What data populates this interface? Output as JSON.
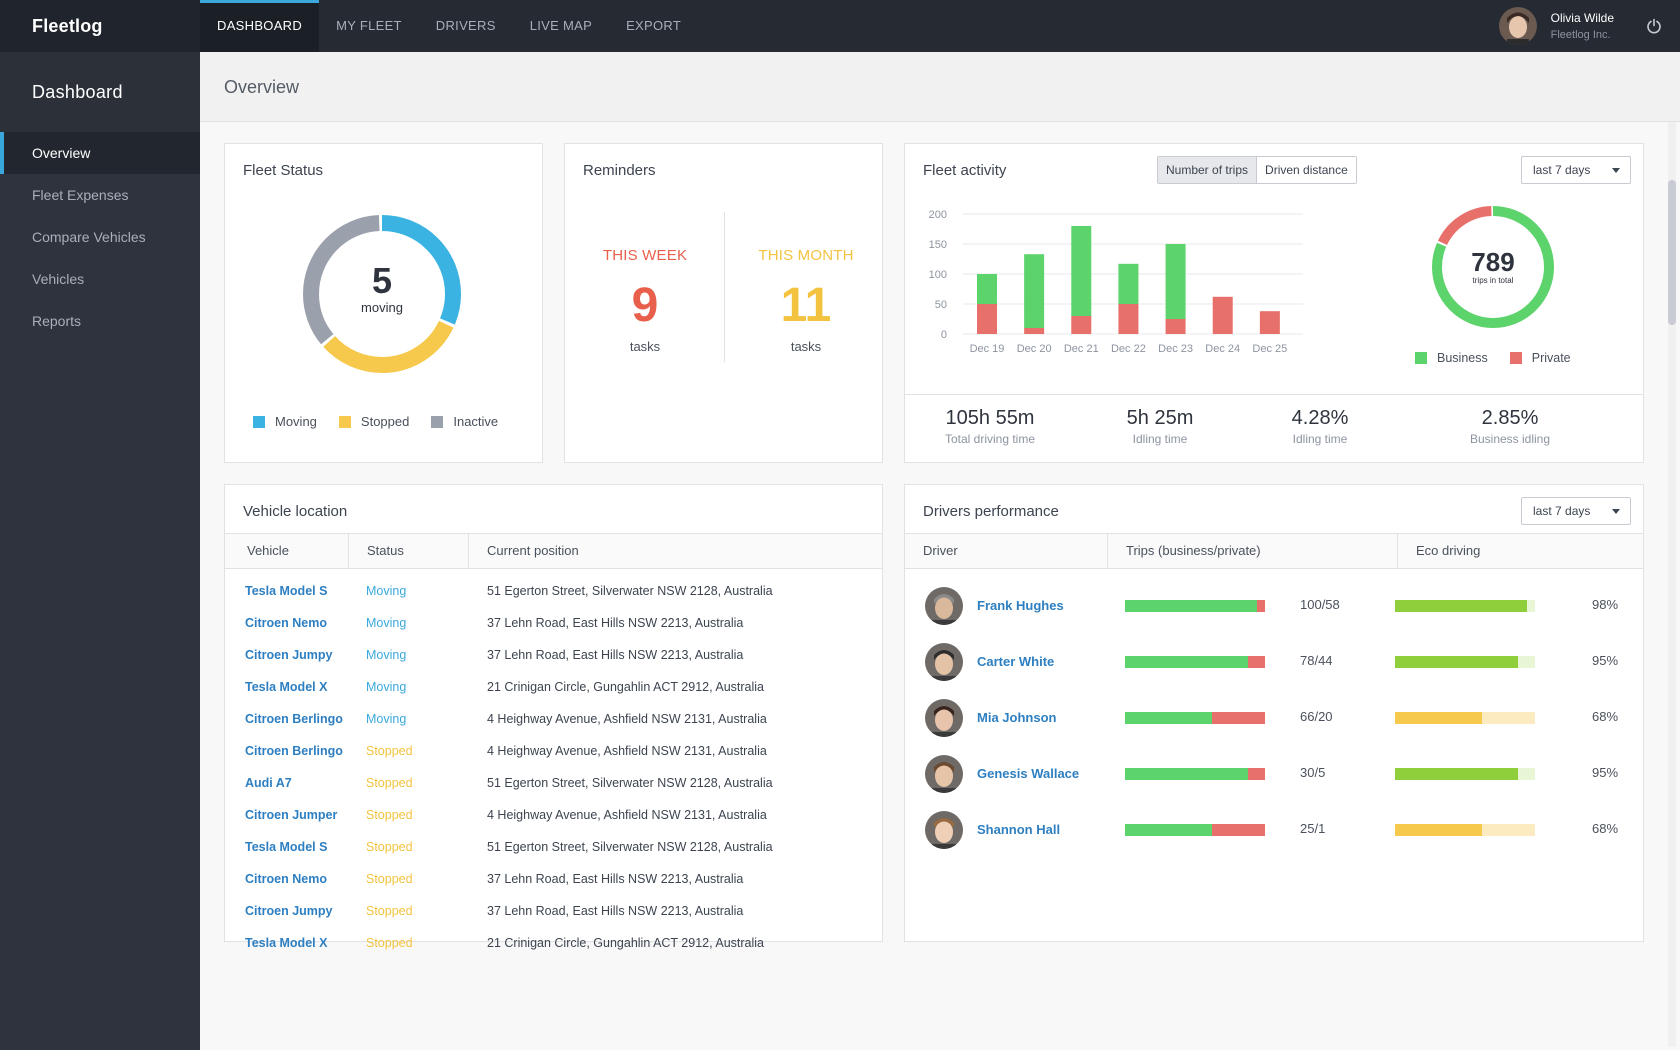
{
  "app": {
    "brand": "Fleetlog"
  },
  "topnav": [
    {
      "label": "DASHBOARD",
      "active": true
    },
    {
      "label": "MY FLEET"
    },
    {
      "label": "DRIVERS"
    },
    {
      "label": "LIVE MAP"
    },
    {
      "label": "EXPORT"
    }
  ],
  "user": {
    "name": "Olivia Wilde",
    "company": "Fleetlog Inc."
  },
  "sidebar": {
    "title": "Dashboard",
    "items": [
      {
        "label": "Overview",
        "active": true
      },
      {
        "label": "Fleet Expenses"
      },
      {
        "label": "Compare Vehicles"
      },
      {
        "label": "Vehicles"
      },
      {
        "label": "Reports"
      }
    ]
  },
  "page": {
    "title": "Overview"
  },
  "fleet_status": {
    "title": "Fleet Status",
    "center_value": "5",
    "center_label": "moving",
    "segments": [
      {
        "label": "Moving",
        "fraction": 0.32,
        "color": "#3ab3e3"
      },
      {
        "label": "Stopped",
        "fraction": 0.32,
        "color": "#f6c94c"
      },
      {
        "label": "Inactive",
        "fraction": 0.36,
        "color": "#9aa1ac"
      }
    ]
  },
  "reminders": {
    "title": "Reminders",
    "week": {
      "label": "THIS WEEK",
      "value": "9",
      "unit": "tasks",
      "color": "#e8604c"
    },
    "month": {
      "label": "THIS MONTH",
      "value": "11",
      "unit": "tasks",
      "color": "#f3c340"
    }
  },
  "fleet_activity": {
    "title": "Fleet activity",
    "toggle": [
      "Number of trips",
      "Driven distance"
    ],
    "range": "last 7 days",
    "total_value": "789",
    "total_label": "trips in total",
    "legend": [
      {
        "label": "Business",
        "color": "#5cd36b"
      },
      {
        "label": "Private",
        "color": "#e8706a"
      }
    ],
    "stats": [
      {
        "value": "105h 55m",
        "label": "Total driving time"
      },
      {
        "value": "5h 25m",
        "label": "Idling time"
      },
      {
        "value": "4.28%",
        "label": "Idling time"
      },
      {
        "value": "2.85%",
        "label": "Business idling"
      }
    ]
  },
  "chart_data": [
    {
      "type": "bar",
      "stacked": true,
      "categories": [
        "Dec 19",
        "Dec 20",
        "Dec 21",
        "Dec 22",
        "Dec 23",
        "Dec 24",
        "Dec 25"
      ],
      "series": [
        {
          "name": "Private",
          "values": [
            50,
            10,
            30,
            50,
            25,
            62,
            38
          ],
          "color": "#e8706a"
        },
        {
          "name": "Business",
          "values": [
            50,
            123,
            150,
            67,
            125,
            0,
            0
          ],
          "color": "#5cd36b"
        }
      ],
      "yticks": [
        0,
        50,
        100,
        150,
        200
      ],
      "ylim": [
        0,
        200
      ],
      "grid": true
    },
    {
      "type": "pie",
      "donut": true,
      "labels": [
        "Business",
        "Private"
      ],
      "values": [
        0.82,
        0.18
      ]
    }
  ],
  "vehicle_location": {
    "title": "Vehicle location",
    "columns": [
      "Vehicle",
      "Status",
      "Current position"
    ],
    "rows": [
      {
        "vehicle": "Tesla Model S",
        "status": "Moving",
        "position": "51 Egerton Street, Silverwater NSW 2128, Australia"
      },
      {
        "vehicle": "Citroen Nemo",
        "status": "Moving",
        "position": "37 Lehn Road, East Hills NSW 2213, Australia"
      },
      {
        "vehicle": "Citroen Jumpy",
        "status": "Moving",
        "position": "37 Lehn Road, East Hills NSW 2213, Australia"
      },
      {
        "vehicle": "Tesla Model X",
        "status": "Moving",
        "position": "21 Crinigan Circle, Gungahlin ACT 2912, Australia"
      },
      {
        "vehicle": "Citroen Berlingo",
        "status": "Moving",
        "position": "4 Heighway Avenue, Ashfield NSW 2131, Australia"
      },
      {
        "vehicle": "Citroen Berlingo",
        "status": "Stopped",
        "position": "4 Heighway Avenue, Ashfield NSW 2131, Australia"
      },
      {
        "vehicle": "Audi A7",
        "status": "Stopped",
        "position": "51 Egerton Street, Silverwater NSW 2128, Australia"
      },
      {
        "vehicle": "Citroen Jumper",
        "status": "Stopped",
        "position": "4 Heighway Avenue, Ashfield NSW 2131, Australia"
      },
      {
        "vehicle": "Tesla Model S",
        "status": "Stopped",
        "position": "51 Egerton Street, Silverwater NSW 2128, Australia"
      },
      {
        "vehicle": "Citroen Nemo",
        "status": "Stopped",
        "position": "37 Lehn Road, East Hills NSW 2213, Australia"
      },
      {
        "vehicle": "Citroen Jumpy",
        "status": "Stopped",
        "position": "37 Lehn Road, East Hills NSW 2213, Australia"
      },
      {
        "vehicle": "Tesla Model X",
        "status": "Stopped",
        "position": "21 Crinigan Circle, Gungahlin ACT 2912, Australia"
      }
    ]
  },
  "drivers_performance": {
    "title": "Drivers performance",
    "range": "last 7 days",
    "columns": [
      "Driver",
      "Trips  (business/private)",
      "Eco driving"
    ],
    "rows": [
      {
        "name": "Frank Hughes",
        "trips": "100/58",
        "business_share": 0.94,
        "eco": "98%",
        "eco_level": 0.94,
        "eco_color": "#8fcf3c",
        "eco_track": "#e8f6d6",
        "face": "#d9b89c",
        "hair": "#8a8a8a"
      },
      {
        "name": "Carter White",
        "trips": "78/44",
        "business_share": 0.88,
        "eco": "95%",
        "eco_level": 0.88,
        "eco_color": "#8fcf3c",
        "eco_track": "#e8f6d6",
        "face": "#e3c2a6",
        "hair": "#2e2e2e"
      },
      {
        "name": "Mia Johnson",
        "trips": "66/20",
        "business_share": 0.62,
        "eco": "68%",
        "eco_level": 0.62,
        "eco_color": "#f6c94c",
        "eco_track": "#fcebc0",
        "face": "#e8c4ad",
        "hair": "#3a2420"
      },
      {
        "name": "Genesis Wallace",
        "trips": "30/5",
        "business_share": 0.88,
        "eco": "95%",
        "eco_level": 0.88,
        "eco_color": "#8fcf3c",
        "eco_track": "#e8f6d6",
        "face": "#e6c4a8",
        "hair": "#6b4a30"
      },
      {
        "name": "Shannon Hall",
        "trips": "25/1",
        "business_share": 0.62,
        "eco": "68%",
        "eco_level": 0.62,
        "eco_color": "#f6c94c",
        "eco_track": "#fcebc0",
        "face": "#efcfb6",
        "hair": "#9a6a40"
      }
    ]
  }
}
